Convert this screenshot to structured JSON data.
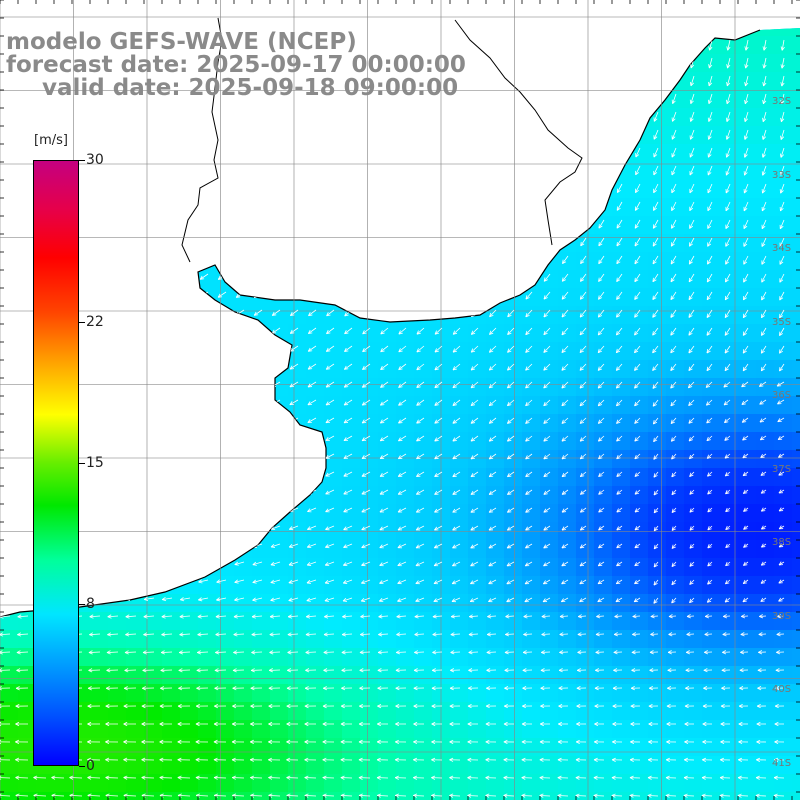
{
  "title": {
    "line1": "modelo GEFS-WAVE (NCEP)",
    "line2": "forecast date: 2025-09-17 00:00:00",
    "line3": "valid date: 2025-09-18 09:00:00"
  },
  "colorbar": {
    "unit": "[m/s]",
    "ticks": [
      "30",
      "22",
      "15",
      "8",
      "0"
    ],
    "tick_values": [
      30,
      22,
      15,
      8,
      0
    ],
    "min": 0,
    "max": 30,
    "colors": [
      "#0000ff",
      "#00a0ff",
      "#00e6ff",
      "#00e800",
      "#ffff00",
      "#ff0000",
      "#c40080"
    ]
  },
  "lat_labels": [
    "32S",
    "33S",
    "34S",
    "35S",
    "36S",
    "37S",
    "38S",
    "39S",
    "40S",
    "41S"
  ],
  "colors": {
    "land": "#ffffff",
    "coast": "#000000",
    "grid": "#888888",
    "arrow": "#ffffff",
    "title": "#8a8a8a"
  },
  "map": {
    "type": "wind-field",
    "grid_on": true,
    "wind_speed_range_ms": [
      0,
      30
    ],
    "dominant_direction": "toward south-west"
  }
}
